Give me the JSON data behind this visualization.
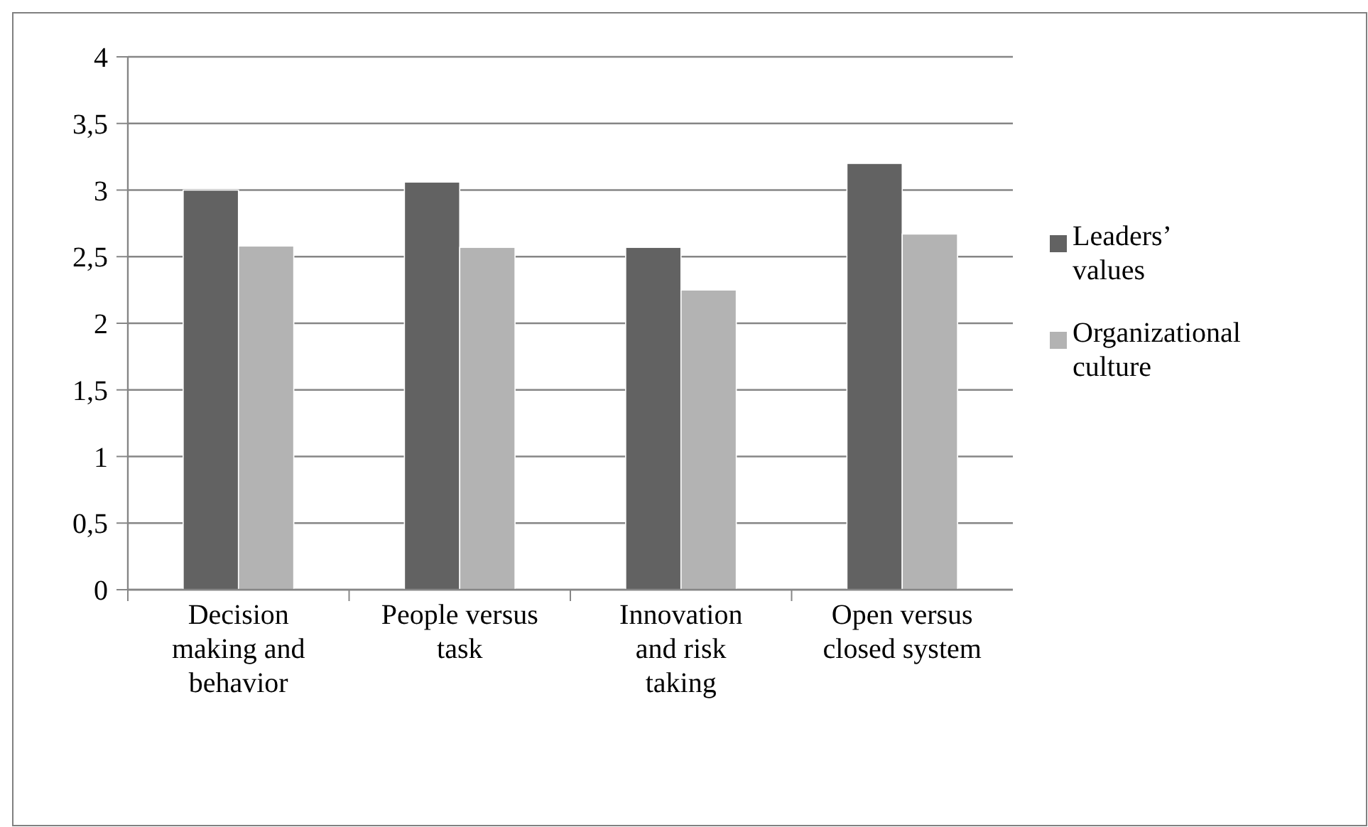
{
  "chart_data": {
    "type": "bar",
    "categories": [
      "Decision making and behavior",
      "People versus task",
      "Innovation and risk taking",
      "Open versus closed system"
    ],
    "series": [
      {
        "name": "Leaders’ values",
        "color": "#626262",
        "values": [
          3.0,
          3.06,
          2.57,
          3.2
        ]
      },
      {
        "name": "Organizational culture",
        "color": "#b3b3b3",
        "values": [
          2.58,
          2.57,
          2.25,
          2.67
        ]
      }
    ],
    "ylim": [
      0,
      4
    ],
    "yticks": [
      0,
      {
        "value": 0.5,
        "label": "0,5"
      },
      1,
      {
        "value": 1.5,
        "label": "1,5"
      },
      2,
      {
        "value": 2.5,
        "label": "2,5"
      },
      3,
      {
        "value": 3.5,
        "label": "3,5"
      },
      4
    ],
    "grid": "y",
    "legend": "right"
  }
}
